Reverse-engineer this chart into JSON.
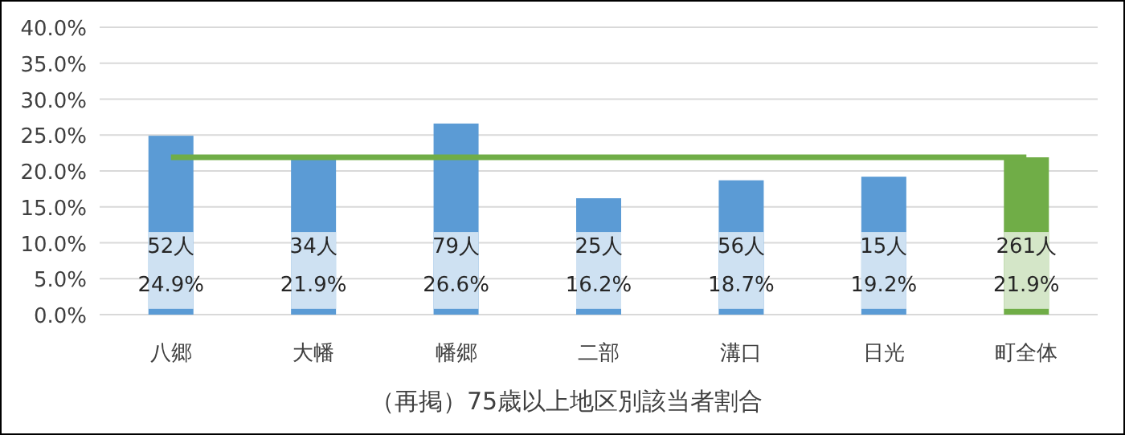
{
  "chart_data": {
    "type": "bar",
    "xlabel": "（再掲）75歳以上地区別該当者割合",
    "categories": [
      "八郷",
      "大幡",
      "幡郷",
      "二部",
      "溝口",
      "日光",
      "町全体"
    ],
    "series": [
      {
        "values": [
          24.9,
          21.9,
          26.6,
          16.2,
          18.7,
          19.2,
          21.9
        ],
        "colors": [
          "#5b9bd5",
          "#5b9bd5",
          "#5b9bd5",
          "#5b9bd5",
          "#5b9bd5",
          "#5b9bd5",
          "#70ad47"
        ],
        "value_labels": [
          "52人\n24.9%",
          "34人\n21.9%",
          "79人\n26.6%",
          "25人\n16.2%",
          "56人\n18.7%",
          "15人\n19.2%",
          "261人\n21.9%"
        ]
      },
      {
        "type": "line",
        "color": "#70ad47",
        "values": [
          21.9,
          21.9,
          21.9,
          21.9,
          21.9,
          21.9,
          21.9
        ]
      }
    ],
    "ylim": [
      0,
      40
    ],
    "yticks": [
      {
        "value": 0,
        "label": "0.0%"
      },
      {
        "value": 5,
        "label": "5.0%"
      },
      {
        "value": 10,
        "label": "10.0%"
      },
      {
        "value": 15,
        "label": "15.0%"
      },
      {
        "value": 20,
        "label": "20.0%"
      },
      {
        "value": 25,
        "label": "25.0%"
      },
      {
        "value": 30,
        "label": "30.0%"
      },
      {
        "value": 35,
        "label": "35.0%"
      },
      {
        "value": 40,
        "label": "40.0%"
      }
    ],
    "grid": "y"
  }
}
